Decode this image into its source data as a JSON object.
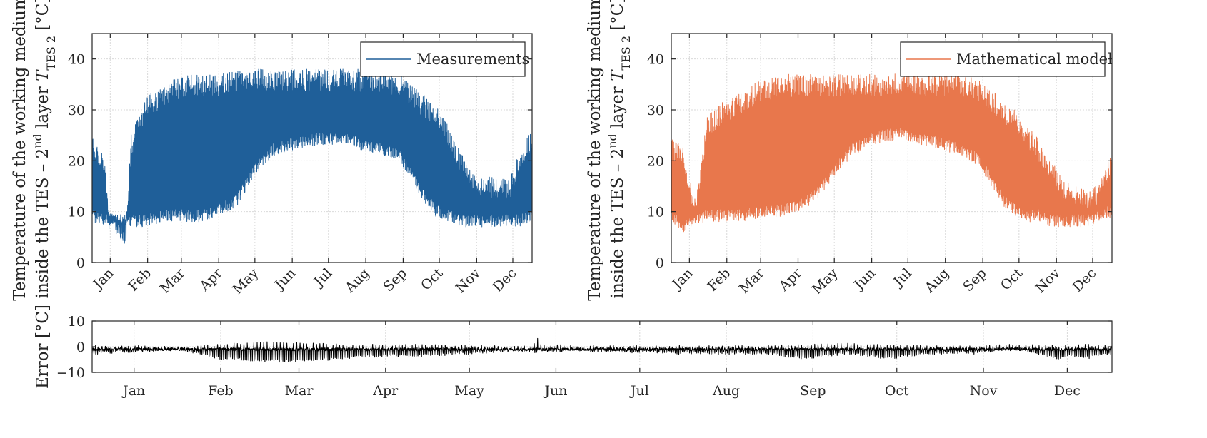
{
  "chart_data": [
    {
      "type": "line",
      "id": "measurements",
      "ylabel_line1": "Temperature of the working medium",
      "ylabel_line2_prefix": "inside the TES – 2",
      "ylabel_line2_sup": "nd",
      "ylabel_line2_mid": " layer ",
      "ylabel_var": "T",
      "ylabel_sub": "TES 2",
      "ylabel_unit": " [°C]",
      "ylim": [
        0,
        45
      ],
      "yticks": [
        0,
        10,
        20,
        30,
        40
      ],
      "ytick_labels": [
        "0",
        "10",
        "20",
        "30",
        "40"
      ],
      "xlim": [
        0,
        365
      ],
      "xticks": [
        15,
        46,
        74,
        105,
        135,
        166,
        196,
        227,
        258,
        288,
        319,
        349
      ],
      "xtick_labels": [
        "Jan",
        "Feb",
        "Mar",
        "Apr",
        "May",
        "Jun",
        "Jul",
        "Aug",
        "Sep",
        "Oct",
        "Nov",
        "Dec"
      ],
      "legend": "Measurements",
      "legend_loc": "top-right",
      "color": "#1f5f99",
      "grid": true,
      "series": [
        {
          "name": "Measurements",
          "envelope_day": [
            0,
            10,
            14,
            28,
            32,
            45,
            60,
            75,
            90,
            105,
            120,
            135,
            150,
            165,
            180,
            195,
            210,
            225,
            240,
            255,
            265,
            275,
            285,
            295,
            305,
            315,
            325,
            335,
            345,
            355,
            365
          ],
          "envelope_low": [
            8,
            7,
            7,
            7,
            7,
            7,
            8,
            8,
            8,
            9,
            11,
            17,
            21,
            22,
            23,
            23,
            23,
            22,
            21,
            20,
            16,
            12,
            9,
            8,
            7,
            7,
            7,
            7,
            7,
            7,
            8
          ],
          "envelope_high": [
            25,
            22,
            10,
            8,
            25,
            33,
            35,
            37,
            37,
            37,
            38,
            38,
            38,
            38,
            38,
            38,
            38,
            38,
            38,
            37,
            35,
            33,
            31,
            27,
            22,
            18,
            17,
            17,
            16,
            22,
            27
          ]
        }
      ]
    },
    {
      "type": "line",
      "id": "model",
      "ylabel_line1": "Temperature of the working medium",
      "ylabel_line2_prefix": "inside the TES – 2",
      "ylabel_line2_sup": "nd",
      "ylabel_line2_mid": " layer ",
      "ylabel_var": "T",
      "ylabel_sub": "TES 2",
      "ylabel_unit": " [°C]",
      "ylim": [
        0,
        45
      ],
      "yticks": [
        0,
        10,
        20,
        30,
        40
      ],
      "ytick_labels": [
        "0",
        "10",
        "20",
        "30",
        "40"
      ],
      "xlim": [
        0,
        365
      ],
      "xticks": [
        15,
        46,
        74,
        105,
        135,
        166,
        196,
        227,
        258,
        288,
        319,
        349
      ],
      "xtick_labels": [
        "Jan",
        "Feb",
        "Mar",
        "Apr",
        "May",
        "Jun",
        "Jul",
        "Aug",
        "Sep",
        "Oct",
        "Nov",
        "Dec"
      ],
      "legend": "Mathematical model",
      "legend_loc": "top-right",
      "color": "#e8774c",
      "grid": true,
      "series": [
        {
          "name": "Mathematical model",
          "envelope_day": [
            0,
            10,
            20,
            30,
            45,
            60,
            75,
            90,
            105,
            120,
            135,
            150,
            165,
            180,
            195,
            210,
            225,
            240,
            255,
            265,
            275,
            285,
            295,
            305,
            315,
            325,
            335,
            345,
            355,
            365
          ],
          "envelope_low": [
            8,
            6,
            7,
            8,
            8,
            8,
            9,
            9,
            10,
            12,
            17,
            21,
            23,
            24,
            24,
            23,
            22,
            21,
            19,
            15,
            11,
            9,
            8,
            8,
            7,
            7,
            7,
            7,
            8,
            9
          ],
          "envelope_high": [
            25,
            23,
            12,
            29,
            32,
            34,
            36,
            37,
            37,
            37,
            37,
            37,
            37,
            37,
            38,
            37,
            37,
            37,
            36,
            34,
            32,
            30,
            27,
            24,
            20,
            16,
            15,
            14,
            16,
            22
          ]
        }
      ]
    },
    {
      "type": "line",
      "id": "error",
      "ylabel": "Error [°C]",
      "ylim": [
        -10,
        10
      ],
      "yticks": [
        -10,
        0,
        10
      ],
      "ytick_labels": [
        "−10",
        "0",
        "10"
      ],
      "xlim": [
        0,
        365
      ],
      "xticks": [
        15,
        46,
        74,
        105,
        135,
        166,
        196,
        227,
        258,
        288,
        319,
        349
      ],
      "xtick_labels": [
        "Jan",
        "Feb",
        "Mar",
        "Apr",
        "May",
        "Jun",
        "Jul",
        "Aug",
        "Sep",
        "Oct",
        "Nov",
        "Dec"
      ],
      "color": "#000000",
      "grid": true,
      "series": [
        {
          "name": "Error",
          "envelope_day": [
            0,
            20,
            30,
            45,
            60,
            75,
            90,
            105,
            120,
            135,
            150,
            158,
            159,
            160,
            180,
            210,
            240,
            255,
            270,
            285,
            300,
            315,
            330,
            345,
            350,
            355,
            365
          ],
          "envelope_low": [
            -3,
            -2,
            -1,
            -5,
            -6,
            -6,
            -5,
            -4,
            -4,
            -3,
            -2,
            -2,
            -3,
            -2,
            -2,
            -3,
            -3,
            -5,
            -3,
            -5,
            -3,
            -3,
            -1,
            -5,
            -4,
            -5,
            -3
          ],
          "envelope_high": [
            0.5,
            0.5,
            0,
            1,
            2,
            2,
            1,
            1,
            1,
            0.5,
            0.5,
            0.5,
            5,
            1,
            0.5,
            0.5,
            0.5,
            1,
            1.5,
            1,
            0.5,
            0.5,
            1,
            0.5,
            0.5,
            1,
            0.5
          ]
        }
      ]
    }
  ]
}
